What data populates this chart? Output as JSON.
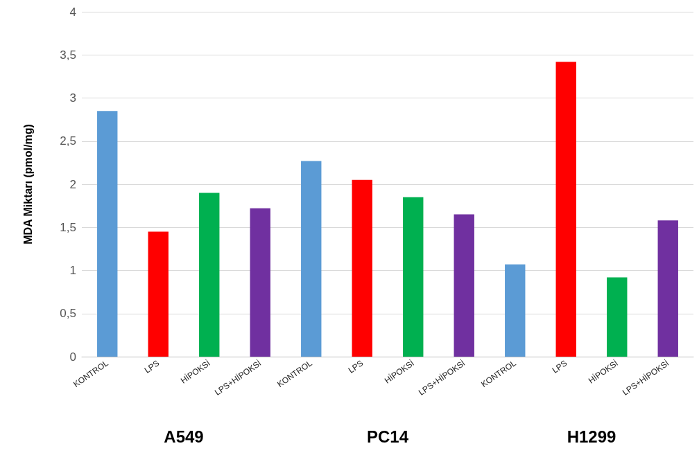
{
  "chart_data": {
    "type": "bar",
    "ylabel": "MDA Miktarı (pmol/mg)",
    "categories": [
      "KONTROL",
      "LPS",
      "HİPOKSİ",
      "LPS+HİPOKSİ",
      "KONTROL",
      "LPS",
      "HİPOKSİ",
      "LPS+HİPOKSİ",
      "KONTROL",
      "LPS",
      "HİPOKSİ",
      "LPS+HİPOKSİ"
    ],
    "values": [
      2.85,
      1.45,
      1.9,
      1.72,
      2.27,
      2.05,
      1.85,
      1.65,
      1.07,
      3.42,
      0.92,
      1.58
    ],
    "colors": [
      "#5b9bd5",
      "#ff0000",
      "#00b050",
      "#7030a0",
      "#5b9bd5",
      "#ff0000",
      "#00b050",
      "#7030a0",
      "#5b9bd5",
      "#ff0000",
      "#00b050",
      "#7030a0"
    ],
    "ylim": [
      0,
      4
    ],
    "yticks": [
      0,
      {
        "value": 0.5,
        "label": "0,5"
      },
      1,
      {
        "value": 1.5,
        "label": "1,5"
      },
      2,
      {
        "value": 2.5,
        "label": "2,5"
      },
      3,
      {
        "value": 3.5,
        "label": "3,5"
      },
      4
    ],
    "grid": "y",
    "annotations": [
      "A549",
      "PC14",
      "H1299"
    ]
  }
}
